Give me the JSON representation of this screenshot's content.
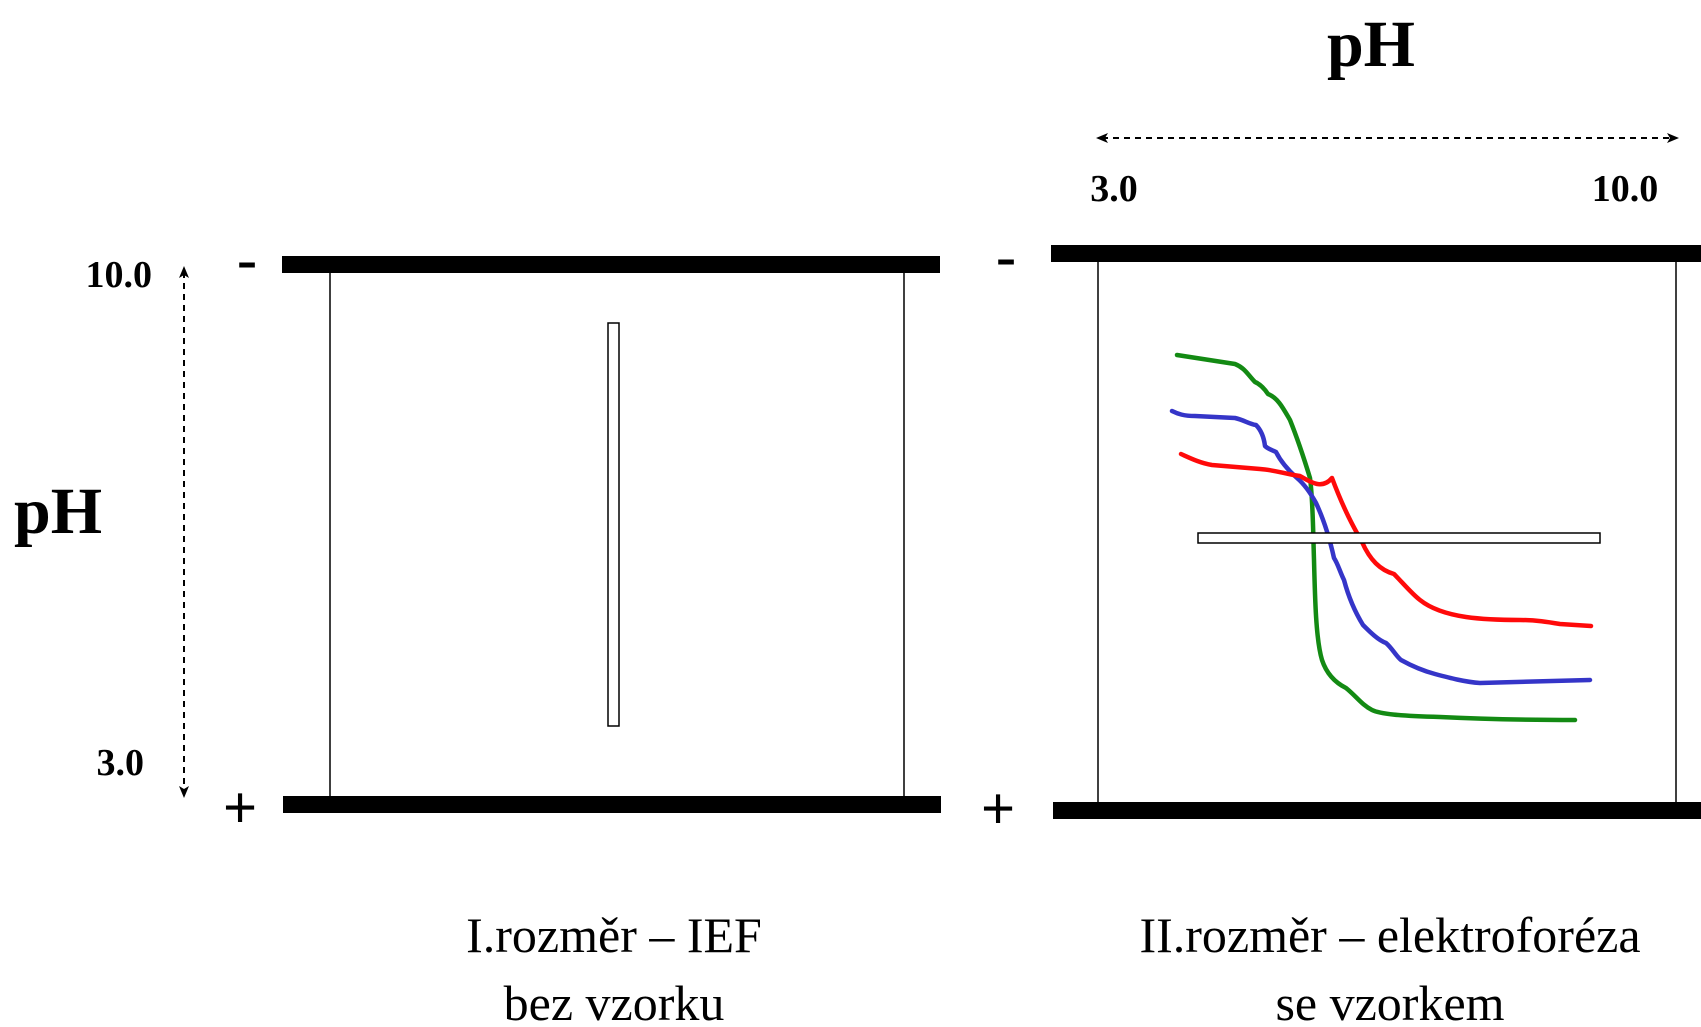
{
  "panel_left": {
    "ph_label": "pH",
    "ph_high": "10.0",
    "ph_low": "3.0",
    "minus": "-",
    "plus": "+",
    "caption_line1": "I.rozměr – IEF",
    "caption_line2": "bez vzorku"
  },
  "panel_right": {
    "ph_label": "pH",
    "ph_low": "3.0",
    "ph_high": "10.0",
    "minus": "-",
    "plus": "+",
    "caption_line1": "II.rozměr – elektroforéza",
    "caption_line2": "se vzorkem"
  },
  "colors": {
    "electrode": "#000000",
    "curve_green": "#138a13",
    "curve_blue": "#3535c8",
    "curve_red": "#ff0a0a"
  }
}
